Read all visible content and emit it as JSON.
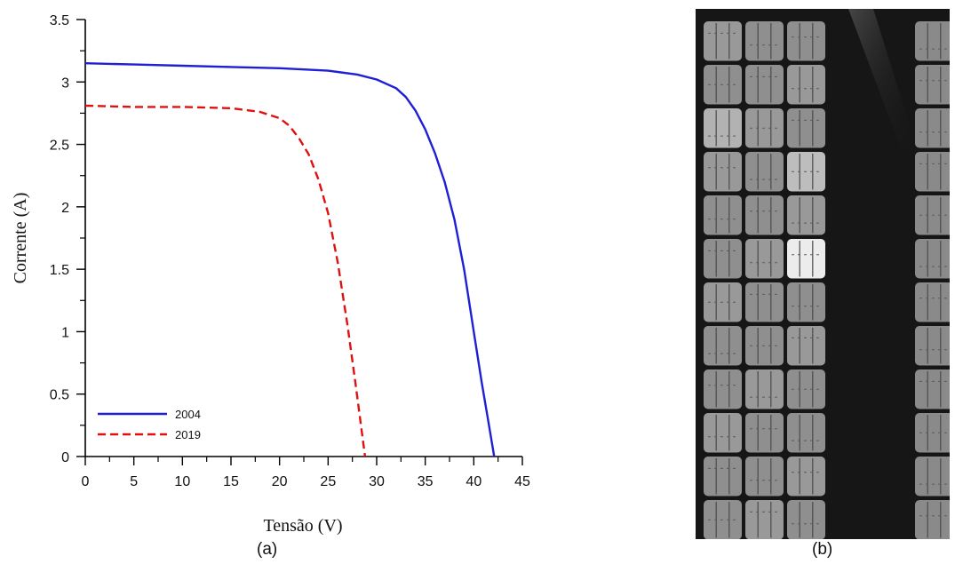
{
  "chart_data": {
    "type": "line",
    "xlabel": "Tensão (V)",
    "ylabel": "Corrente (A)",
    "xlim": [
      0,
      45
    ],
    "ylim": [
      0,
      3.5
    ],
    "xticks": [
      "0",
      "5",
      "10",
      "15",
      "20",
      "25",
      "30",
      "35",
      "40",
      "45"
    ],
    "yticks": [
      "0",
      "0.5",
      "1",
      "1.5",
      "2",
      "2.5",
      "3",
      "3.5"
    ],
    "grid": false,
    "legend": "bottom-left",
    "series": [
      {
        "name": "2004",
        "color": "#1f1fd6",
        "style": "solid",
        "x": [
          0,
          5,
          10,
          15,
          20,
          25,
          28,
          30,
          32,
          33,
          34,
          35,
          36,
          37,
          38,
          39,
          40,
          40.8,
          41.5,
          42.1
        ],
        "y": [
          3.15,
          3.14,
          3.13,
          3.12,
          3.11,
          3.09,
          3.06,
          3.02,
          2.95,
          2.88,
          2.77,
          2.62,
          2.43,
          2.2,
          1.9,
          1.5,
          1.0,
          0.6,
          0.28,
          0.0
        ]
      },
      {
        "name": "2019",
        "color": "#e01010",
        "style": "dashed",
        "x": [
          0,
          5,
          10,
          15,
          18,
          20,
          21,
          22,
          23,
          24,
          25,
          26,
          27,
          27.8,
          28.3,
          28.8
        ],
        "y": [
          2.81,
          2.8,
          2.8,
          2.79,
          2.76,
          2.71,
          2.65,
          2.55,
          2.42,
          2.22,
          1.95,
          1.55,
          1.05,
          0.6,
          0.3,
          0.0
        ]
      }
    ]
  },
  "captions": {
    "a": "(a)",
    "b": "(b)"
  },
  "el_image": {
    "description_icon": "electroluminescence-image",
    "columns": 4,
    "rows": 12
  }
}
